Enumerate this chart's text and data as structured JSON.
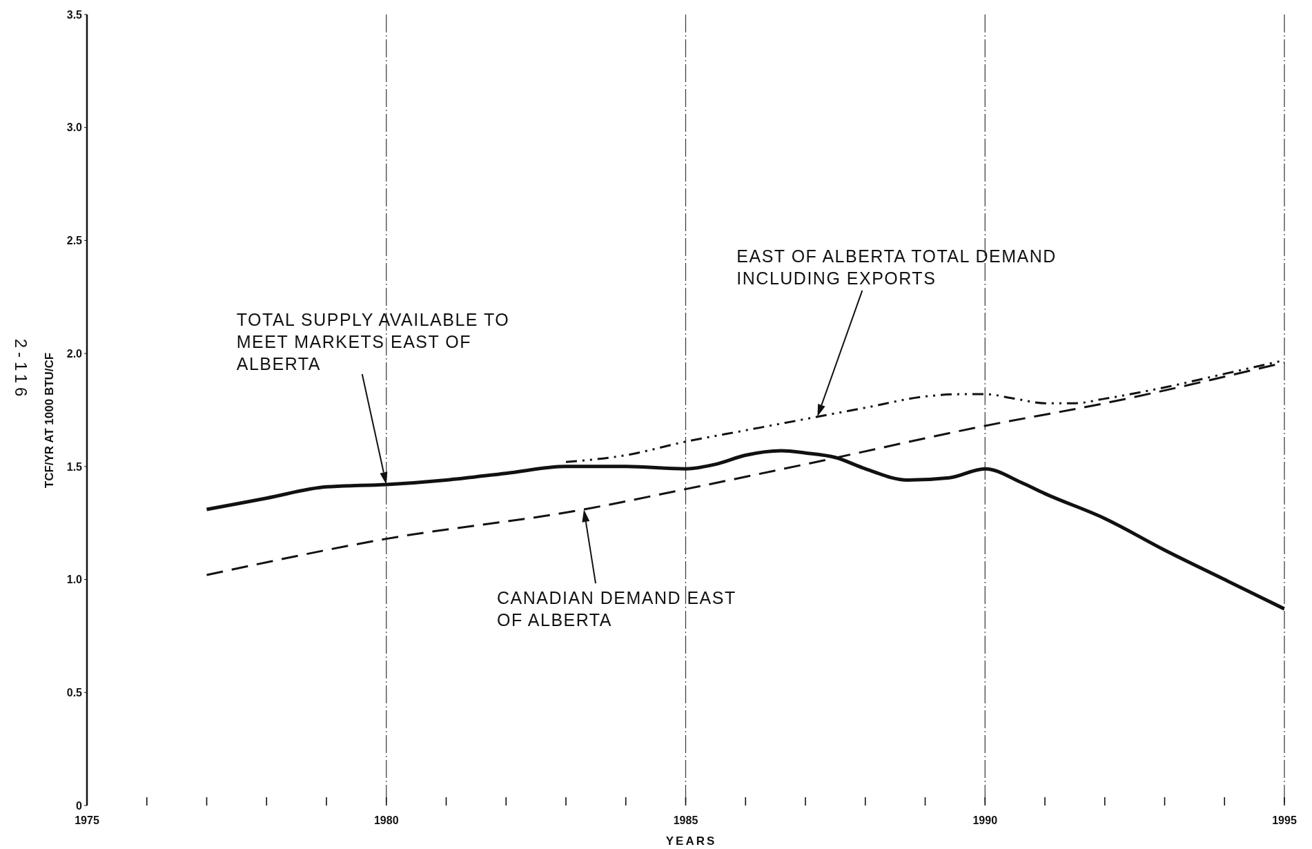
{
  "chart_data": {
    "type": "line",
    "xlabel": "YEARS",
    "ylabel": "TCF/YR AT 1000 BTU/CF",
    "annotations": [
      "2-116"
    ],
    "xlim": [
      1975,
      1995
    ],
    "xticks": [
      1975,
      {
        "value": 1976,
        "label": null
      },
      {
        "value": 1977,
        "label": null
      },
      {
        "value": 1978,
        "label": null
      },
      {
        "value": 1979,
        "label": null
      },
      1980,
      {
        "value": 1981,
        "label": null
      },
      {
        "value": 1982,
        "label": null
      },
      {
        "value": 1983,
        "label": null
      },
      {
        "value": 1984,
        "label": null
      },
      1985,
      {
        "value": 1986,
        "label": null
      },
      {
        "value": 1987,
        "label": null
      },
      {
        "value": 1988,
        "label": null
      },
      {
        "value": 1989,
        "label": null
      },
      1990,
      {
        "value": 1991,
        "label": null
      },
      {
        "value": 1992,
        "label": null
      },
      {
        "value": 1993,
        "label": null
      },
      {
        "value": 1994,
        "label": null
      },
      1995
    ],
    "ylim": [
      0,
      3.5
    ],
    "yticks": [
      0,
      0.5,
      {
        "value": 1,
        "label": "1.0"
      },
      1.5,
      {
        "value": 2,
        "label": "2.0"
      },
      2.5,
      {
        "value": 3,
        "label": "3.0"
      },
      3.5
    ],
    "grid": "x",
    "series": [
      {
        "name": "TOTAL SUPPLY AVAILABLE TO\nMEET MARKETS EAST OF\nALBERTA",
        "color": "#111111",
        "line_style": "solid",
        "x": [
          1977,
          1978,
          1979,
          1980,
          1981,
          1982,
          1983,
          1984,
          1985,
          1985.5,
          1986,
          1986.6,
          1987,
          1987.5,
          1988,
          1988.7,
          1989.4,
          1990,
          1990.6,
          1991,
          1992,
          1993,
          1994,
          1995
        ],
        "values": [
          1.31,
          1.36,
          1.41,
          1.42,
          1.44,
          1.47,
          1.5,
          1.5,
          1.49,
          1.51,
          1.55,
          1.57,
          1.56,
          1.54,
          1.49,
          1.44,
          1.45,
          1.49,
          1.43,
          1.38,
          1.27,
          1.13,
          1.0,
          0.87
        ]
      },
      {
        "name": "CANADIAN DEMAND EAST\nOF ALBERTA",
        "color": "#111111",
        "line_style": "dashed",
        "x": [
          1977,
          1980,
          1983.3,
          1985,
          1987,
          1990,
          1992,
          1995
        ],
        "values": [
          1.02,
          1.18,
          1.31,
          1.4,
          1.51,
          1.68,
          1.78,
          1.96
        ]
      },
      {
        "name": "EAST OF ALBERTA TOTAL DEMAND\nINCLUDING EXPORTS",
        "color": "#111111",
        "line_style": "dashdot",
        "x": [
          1983,
          1984,
          1985,
          1986,
          1987.2,
          1988,
          1989,
          1989.6,
          1990,
          1990.5,
          1991,
          1991.5,
          1992,
          1993,
          1994,
          1995
        ],
        "values": [
          1.52,
          1.55,
          1.61,
          1.66,
          1.72,
          1.76,
          1.81,
          1.82,
          1.82,
          1.8,
          1.78,
          1.78,
          1.8,
          1.85,
          1.91,
          1.97
        ]
      }
    ]
  }
}
